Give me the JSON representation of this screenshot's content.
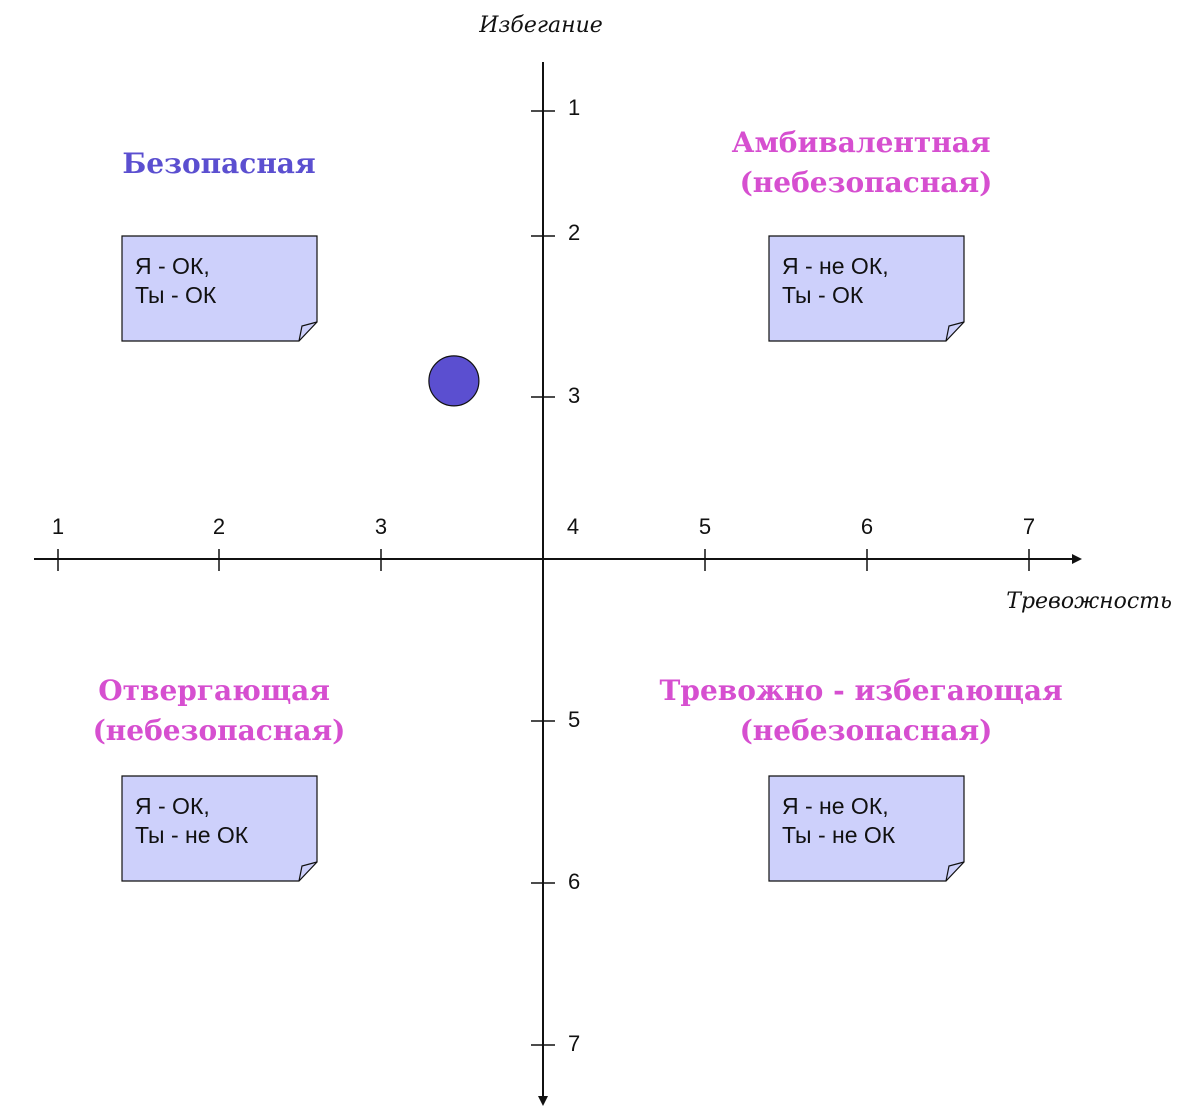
{
  "axes": {
    "x_title": "Тревожность",
    "y_title": "Избегание",
    "x_ticks": [
      "1",
      "2",
      "3",
      "4",
      "5",
      "6",
      "7"
    ],
    "y_ticks_top": [
      "1",
      "2",
      "3"
    ],
    "y_ticks_bottom": [
      "5",
      "6",
      "7"
    ]
  },
  "quadrants": {
    "top_left": {
      "lines": [
        "Безопасная"
      ],
      "color": "#5b4fd0"
    },
    "top_right": {
      "lines": [
        "Амбивалентная",
        "(небезопасная)"
      ],
      "color": "#d64fd0"
    },
    "bottom_left": {
      "lines": [
        "Отвергающая",
        "(небезопасная)"
      ],
      "color": "#d64fd0"
    },
    "bottom_right": {
      "lines": [
        "Тревожно - избегающая",
        "(небезопасная)"
      ],
      "color": "#d64fd0"
    }
  },
  "notes": {
    "top_left": [
      "Я - ОК,",
      "Ты - ОК"
    ],
    "top_right": [
      "Я - не ОК,",
      "Ты - ОК"
    ],
    "bottom_left": [
      "Я - ОК,",
      "Ты - не ОК"
    ],
    "bottom_right": [
      "Я - не ОК,",
      "Ты - не ОК"
    ]
  },
  "marker": {
    "anxiety": 3.45,
    "avoidance": 2.9,
    "color": "#5b4fd0"
  },
  "colors": {
    "note_fill": "#cdd0fb",
    "axis": "#111111"
  }
}
